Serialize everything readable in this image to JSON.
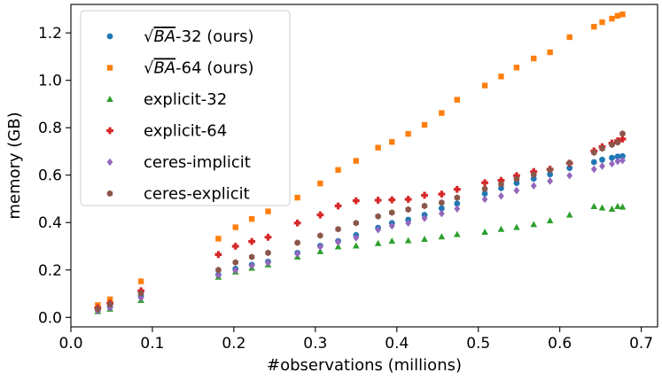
{
  "chart_data": {
    "type": "scatter",
    "title": "",
    "xlabel": "#observations (millions)",
    "ylabel": "memory (GB)",
    "xlim": [
      0.0,
      0.72
    ],
    "ylim": [
      -0.04,
      1.32
    ],
    "xticks": [
      "0.0",
      "0.1",
      "0.2",
      "0.3",
      "0.4",
      "0.5",
      "0.6",
      "0.7"
    ],
    "yticks": [
      "0.0",
      "0.2",
      "0.4",
      "0.6",
      "0.8",
      "1.0",
      "1.2"
    ],
    "legend_position": "top-left",
    "x": [
      0.033,
      0.048,
      0.086,
      0.181,
      0.202,
      0.222,
      0.242,
      0.278,
      0.306,
      0.328,
      0.35,
      0.377,
      0.394,
      0.414,
      0.434,
      0.455,
      0.474,
      0.508,
      0.528,
      0.547,
      0.568,
      0.588,
      0.612,
      0.642,
      0.652,
      0.664,
      0.671,
      0.677
    ],
    "series": [
      {
        "name": "√BA-32 (ours)",
        "label_prefix": "√",
        "label_italic": "BA",
        "label_suffix": "-32 (ours)",
        "marker": "circle",
        "color": "#1f77b4",
        "values": [
          0.03,
          0.045,
          0.09,
          0.18,
          0.205,
          0.222,
          0.235,
          0.272,
          0.302,
          0.322,
          0.347,
          0.378,
          0.398,
          0.412,
          0.432,
          0.46,
          0.48,
          0.522,
          0.545,
          0.567,
          0.585,
          0.603,
          0.63,
          0.655,
          0.665,
          0.673,
          0.678,
          0.68
        ]
      },
      {
        "name": "√BA-64 (ours)",
        "label_prefix": "√",
        "label_italic": "BA",
        "label_suffix": "-64 (ours)",
        "marker": "square",
        "color": "#ff7f0e",
        "values": [
          0.052,
          0.076,
          0.152,
          0.332,
          0.38,
          0.415,
          0.447,
          0.505,
          0.565,
          0.622,
          0.66,
          0.716,
          0.74,
          0.774,
          0.812,
          0.862,
          0.918,
          0.978,
          1.016,
          1.054,
          1.092,
          1.118,
          1.182,
          1.226,
          1.245,
          1.26,
          1.272,
          1.278
        ]
      },
      {
        "name": "explicit-32",
        "label_prefix": "",
        "label_italic": "",
        "label_suffix": "explicit-32",
        "marker": "triangle",
        "color": "#2ca02c",
        "values": [
          0.025,
          0.035,
          0.072,
          0.17,
          0.192,
          0.208,
          0.222,
          0.255,
          0.278,
          0.298,
          0.302,
          0.312,
          0.322,
          0.324,
          0.33,
          0.34,
          0.35,
          0.36,
          0.372,
          0.38,
          0.392,
          0.408,
          0.432,
          0.468,
          0.462,
          0.457,
          0.468,
          0.466
        ]
      },
      {
        "name": "explicit-64",
        "label_prefix": "",
        "label_italic": "",
        "label_suffix": "explicit-64",
        "marker": "plus",
        "color": "#d62728",
        "values": [
          0.04,
          0.06,
          0.112,
          0.265,
          0.3,
          0.32,
          0.338,
          0.398,
          0.432,
          0.47,
          0.492,
          0.494,
          0.496,
          0.498,
          0.515,
          0.52,
          0.54,
          0.568,
          0.578,
          0.598,
          0.615,
          0.625,
          0.65,
          0.702,
          0.72,
          0.735,
          0.745,
          0.752
        ]
      },
      {
        "name": "ceres-implicit",
        "label_prefix": "",
        "label_italic": "",
        "label_suffix": "ceres-implicit",
        "marker": "diamond",
        "color": "#9467bd",
        "values": [
          0.028,
          0.04,
          0.082,
          0.178,
          0.198,
          0.218,
          0.23,
          0.268,
          0.298,
          0.318,
          0.336,
          0.37,
          0.386,
          0.398,
          0.418,
          0.438,
          0.458,
          0.498,
          0.512,
          0.535,
          0.555,
          0.575,
          0.598,
          0.625,
          0.638,
          0.648,
          0.658,
          0.662
        ]
      },
      {
        "name": "ceres-explicit",
        "label_prefix": "",
        "label_italic": "",
        "label_suffix": "ceres-explicit",
        "marker": "hexagon",
        "color": "#8c564b",
        "values": [
          0.035,
          0.055,
          0.102,
          0.2,
          0.232,
          0.255,
          0.272,
          0.315,
          0.345,
          0.372,
          0.398,
          0.426,
          0.442,
          0.455,
          0.47,
          0.484,
          0.505,
          0.542,
          0.562,
          0.584,
          0.602,
          0.622,
          0.652,
          0.695,
          0.712,
          0.728,
          0.738,
          0.775
        ]
      }
    ]
  }
}
